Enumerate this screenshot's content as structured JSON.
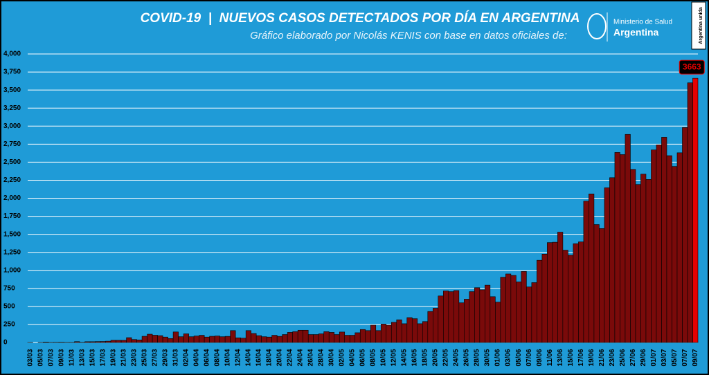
{
  "chart_data": {
    "type": "bar",
    "title": "COVID-19  |  NUEVOS CASOS DETECTADOS POR DÍA EN ARGENTINA",
    "subtitle": "Gráfico elaborado por Nicolás KENIS con base en datos oficiales de:",
    "logo": {
      "line1": "Ministerio de Salud",
      "line2": "Argentina"
    },
    "badge": "Argentina unida",
    "categories": [
      "03/03",
      null,
      "05/03",
      null,
      "07/03",
      null,
      "09/03",
      null,
      "11/03",
      null,
      "13/03",
      null,
      "15/03",
      null,
      "17/03",
      null,
      "19/03",
      null,
      "21/03",
      null,
      "23/03",
      null,
      "25/03",
      null,
      "27/03",
      null,
      "29/03",
      null,
      "31/03",
      null,
      "02/04",
      null,
      "04/04",
      null,
      "06/04",
      null,
      "08/04",
      null,
      "10/04",
      null,
      "12/04",
      null,
      "14/04",
      null,
      "16/04",
      null,
      "18/04",
      null,
      "20/04",
      null,
      "22/04",
      null,
      "24/04",
      null,
      "26/04",
      null,
      "28/04",
      null,
      "30/04",
      null,
      "02/05",
      null,
      "04/05",
      null,
      "06/05",
      null,
      "08/05",
      null,
      "10/05",
      null,
      "12/05",
      null,
      "14/05",
      null,
      "16/05",
      null,
      "18/05",
      null,
      "20/05",
      null,
      "22/05",
      null,
      "24/05",
      null,
      "26/05",
      null,
      "28/05",
      null,
      "30/05",
      null,
      "01/06",
      null,
      "03/06",
      null,
      "05/06",
      null,
      "07/06",
      null,
      "09/06",
      null,
      "11/06",
      null,
      "13/06",
      null,
      "15/06",
      null,
      "17/06",
      null,
      "19/06",
      null,
      "21/06",
      null,
      "23/06",
      null,
      "25/06",
      null,
      "27/06",
      null,
      "29/06",
      null,
      "01/07",
      null,
      "03/07",
      null,
      "05/07",
      null,
      "07/07",
      null,
      "09/07"
    ],
    "values": [
      1,
      0,
      1,
      6,
      2,
      3,
      4,
      2,
      2,
      12,
      3,
      11,
      11,
      13,
      14,
      18,
      31,
      31,
      30,
      67,
      41,
      36,
      86,
      115,
      101,
      95,
      75,
      55,
      146,
      80,
      120,
      80,
      90,
      100,
      75,
      86,
      90,
      80,
      85,
      165,
      65,
      60,
      165,
      125,
      95,
      80,
      75,
      100,
      85,
      110,
      140,
      150,
      170,
      170,
      110,
      110,
      120,
      150,
      140,
      110,
      145,
      100,
      100,
      135,
      180,
      165,
      240,
      165,
      255,
      240,
      280,
      315,
      260,
      345,
      330,
      260,
      290,
      430,
      475,
      645,
      715,
      705,
      720,
      550,
      600,
      705,
      760,
      730,
      795,
      635,
      560,
      905,
      950,
      930,
      840,
      985,
      770,
      830,
      1140,
      1225,
      1385,
      1390,
      1530,
      1280,
      1210,
      1370,
      1395,
      1960,
      2060,
      1635,
      1580,
      2145,
      2285,
      2635,
      2605,
      2885,
      2400,
      2190,
      2335,
      2260,
      2670,
      2740,
      2845,
      2590,
      2440,
      2630,
      2980,
      3600,
      3663
    ],
    "color": "#7a0a0a",
    "last_color": "#e60000",
    "ylim": [
      0,
      4000
    ],
    "yticks": [
      0,
      250,
      500,
      750,
      {
        "value": 1000,
        "label": "1,000"
      },
      {
        "value": 1250,
        "label": "1,250"
      },
      {
        "value": 1500,
        "label": "1,500"
      },
      {
        "value": 1750,
        "label": "1,750"
      },
      {
        "value": 2000,
        "label": "2,000"
      },
      {
        "value": 2250,
        "label": "2,250"
      },
      {
        "value": 2500,
        "label": "2,500"
      },
      {
        "value": 2750,
        "label": "2,750"
      },
      {
        "value": 3000,
        "label": "3,000"
      },
      {
        "value": 3250,
        "label": "3,250"
      },
      {
        "value": 3500,
        "label": "3,500"
      },
      {
        "value": 3750,
        "label": "3,750"
      },
      {
        "value": 4000,
        "label": "4,000"
      }
    ],
    "grid": true
  }
}
